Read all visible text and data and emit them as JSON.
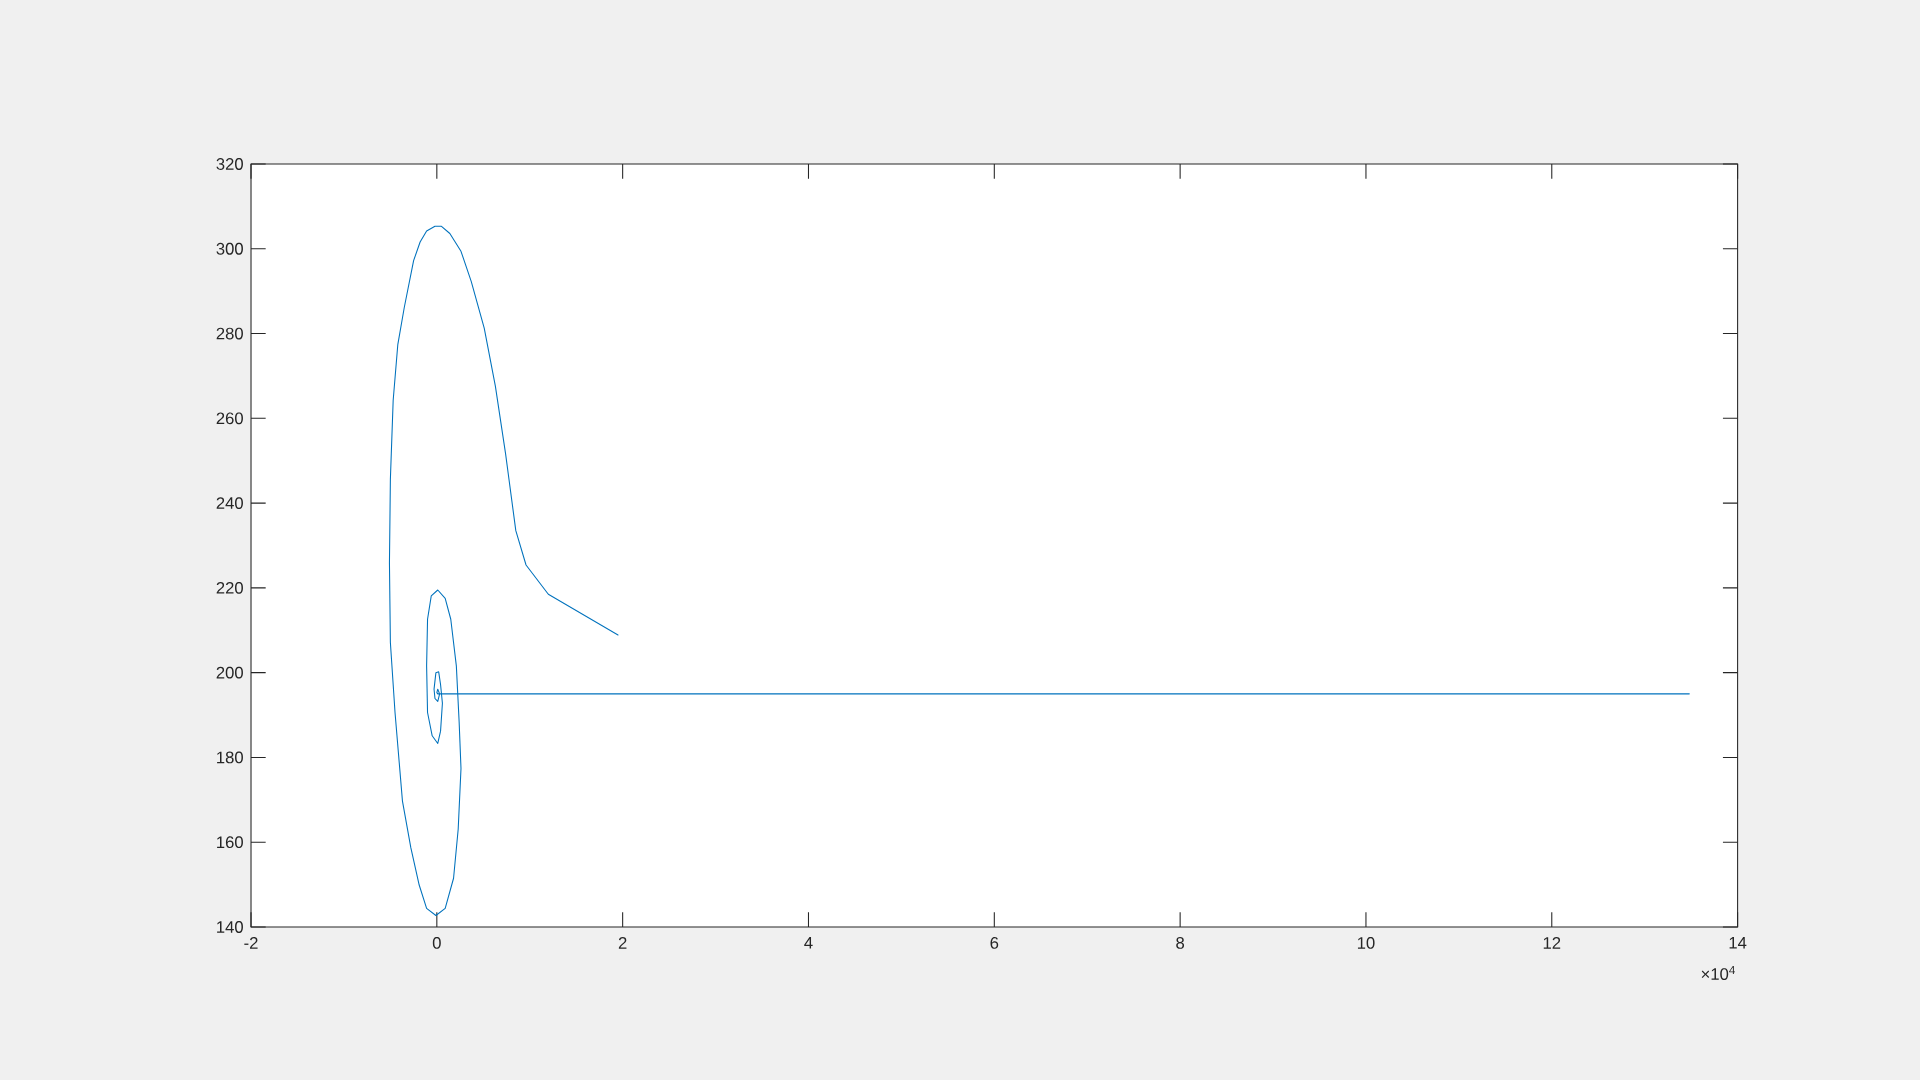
{
  "chart_data": {
    "type": "line",
    "color": "#0072bd",
    "marker": "none",
    "line_style": "solid",
    "x": [
      1.95,
      1.2,
      0.96,
      0.85,
      0.74,
      0.63,
      0.51,
      0.37,
      0.26,
      0.14,
      0.05,
      -0.02,
      -0.11,
      -0.18,
      -0.25,
      -0.35,
      -0.42,
      -0.47,
      -0.5,
      -0.51,
      -0.5,
      -0.45,
      -0.37,
      -0.28,
      -0.19,
      -0.11,
      -0.01,
      0.09,
      0.18,
      0.23,
      0.26,
      0.24,
      0.21,
      0.15,
      0.09,
      0.01,
      -0.06,
      -0.1,
      -0.11,
      -0.1,
      -0.05,
      0.01,
      0.04,
      0.06,
      0.04,
      0.02,
      -0.01,
      -0.03,
      -0.02,
      0.01,
      0.03,
      0.01,
      0,
      0.01,
      13.48
    ],
    "values": [
      208.9,
      218.5,
      225.4,
      233.5,
      251.6,
      267.6,
      281.3,
      292.3,
      299.4,
      303.6,
      305.3,
      305.3,
      304.2,
      301.6,
      297.2,
      286.2,
      277.4,
      264.2,
      245.6,
      225.8,
      207.1,
      190.6,
      169.7,
      158.7,
      149.9,
      144.4,
      142.7,
      144.4,
      151.5,
      163.1,
      177.4,
      188.4,
      201.6,
      212.6,
      217.5,
      219.5,
      218.1,
      212.6,
      201.6,
      190.6,
      185.1,
      183.3,
      186.2,
      192.8,
      197.2,
      200.2,
      200,
      196.1,
      193.9,
      193.2,
      195,
      196.1,
      195.3,
      195,
      195
    ],
    "xlim": [
      -2,
      14
    ],
    "ylim": [
      140,
      320
    ],
    "xticks": [
      -2,
      0,
      2,
      4,
      6,
      8,
      10,
      12,
      14
    ],
    "yticks": [
      140,
      160,
      180,
      200,
      220,
      240,
      260,
      280,
      300,
      320
    ],
    "annotations": [
      "×10$^{4}$"
    ]
  }
}
